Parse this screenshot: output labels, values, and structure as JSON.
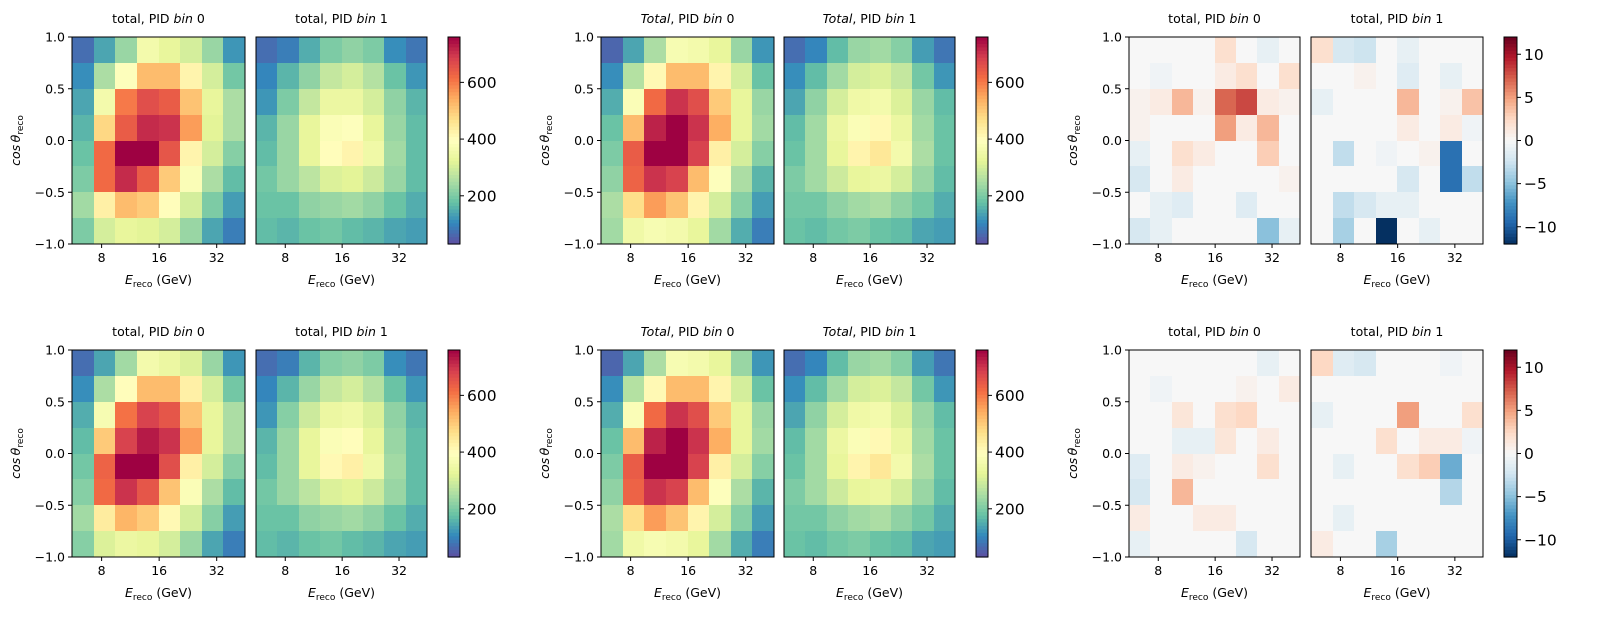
{
  "figure": {
    "rows": 2,
    "panel_titles": [
      [
        "total,  PID ",
        "bin",
        " 0"
      ],
      [
        "total,  PID ",
        "bin",
        " 1"
      ],
      [
        "Total",
        ",  PID ",
        "bin",
        " 0"
      ],
      [
        "Total",
        ",  PID ",
        "bin",
        " 1"
      ]
    ],
    "xlabel_prefix": "E",
    "xlabel_sub": "reco",
    "xlabel_suffix": " (GeV)",
    "ylabel_prefix": "cos θ",
    "ylabel_sub": "reco",
    "x_ticks": [
      "8",
      "16",
      "32"
    ],
    "y_ticks": [
      "1.0",
      "0.5",
      "0.0",
      "−0.5",
      "−1.0"
    ],
    "cbar_counts_ticks": [
      "600",
      "400",
      "200"
    ],
    "cbar_diff_ticks": [
      "10",
      "5",
      "0",
      "−5",
      "−10"
    ]
  },
  "chart_data": {
    "type": "heatmap",
    "x_scale": "log",
    "x_range": [
      5.6,
      45
    ],
    "y_range": [
      -1.0,
      1.0
    ],
    "grid": "8x8 bins",
    "counts_colormap": "Spectral_r",
    "counts_range": [
      30,
      760
    ],
    "diff_colormap": "RdBu_r",
    "diff_range": [
      -12,
      12
    ],
    "panels": [
      {
        "group": "model",
        "row": 0,
        "pid_bin": 0,
        "z": [
          [
            70,
            140,
            230,
            360,
            330,
            300,
            230,
            120
          ],
          [
            110,
            250,
            390,
            520,
            520,
            420,
            300,
            190
          ],
          [
            140,
            360,
            600,
            660,
            640,
            510,
            330,
            250
          ],
          [
            160,
            480,
            640,
            710,
            700,
            560,
            320,
            250
          ],
          [
            180,
            620,
            760,
            760,
            650,
            420,
            300,
            210
          ],
          [
            200,
            620,
            710,
            640,
            500,
            380,
            250,
            170
          ],
          [
            240,
            430,
            520,
            500,
            400,
            300,
            200,
            130
          ],
          [
            200,
            300,
            330,
            320,
            300,
            230,
            140,
            90
          ]
        ]
      },
      {
        "group": "model",
        "row": 0,
        "pid_bin": 1,
        "z": [
          [
            70,
            90,
            150,
            200,
            220,
            200,
            110,
            80
          ],
          [
            100,
            160,
            220,
            280,
            300,
            260,
            180,
            120
          ],
          [
            120,
            200,
            280,
            340,
            340,
            300,
            220,
            160
          ],
          [
            160,
            230,
            330,
            380,
            390,
            330,
            230,
            170
          ],
          [
            170,
            230,
            330,
            400,
            420,
            350,
            240,
            170
          ],
          [
            190,
            230,
            270,
            310,
            320,
            290,
            230,
            170
          ],
          [
            180,
            180,
            220,
            230,
            240,
            220,
            180,
            150
          ],
          [
            170,
            160,
            180,
            190,
            170,
            160,
            140,
            130
          ]
        ]
      },
      {
        "group": "data",
        "row": 0,
        "pid_bin": 0,
        "z": [
          [
            60,
            140,
            250,
            370,
            360,
            330,
            230,
            120
          ],
          [
            110,
            260,
            410,
            520,
            520,
            420,
            300,
            180
          ],
          [
            150,
            380,
            620,
            700,
            660,
            500,
            330,
            230
          ],
          [
            180,
            520,
            720,
            760,
            700,
            540,
            330,
            240
          ],
          [
            200,
            640,
            760,
            760,
            680,
            430,
            300,
            210
          ],
          [
            220,
            630,
            700,
            680,
            520,
            390,
            250,
            160
          ],
          [
            250,
            470,
            560,
            510,
            420,
            300,
            210,
            130
          ],
          [
            240,
            350,
            370,
            360,
            330,
            240,
            150,
            90
          ]
        ]
      },
      {
        "group": "data",
        "row": 0,
        "pid_bin": 1,
        "z": [
          [
            70,
            100,
            170,
            230,
            240,
            210,
            130,
            80
          ],
          [
            110,
            170,
            240,
            300,
            310,
            280,
            190,
            120
          ],
          [
            140,
            220,
            300,
            350,
            360,
            310,
            230,
            170
          ],
          [
            170,
            240,
            340,
            380,
            410,
            340,
            240,
            180
          ],
          [
            180,
            240,
            330,
            420,
            450,
            360,
            250,
            180
          ],
          [
            200,
            240,
            290,
            330,
            340,
            300,
            230,
            170
          ],
          [
            190,
            190,
            220,
            240,
            250,
            220,
            190,
            150
          ],
          [
            180,
            170,
            190,
            200,
            180,
            170,
            140,
            130
          ]
        ]
      },
      {
        "group": "diff",
        "row": 0,
        "pid_bin": 0,
        "z": [
          [
            0,
            0,
            0,
            0,
            2,
            0,
            -1,
            0
          ],
          [
            0,
            -0.5,
            0,
            0,
            1,
            2,
            0,
            2
          ],
          [
            0.5,
            1,
            4,
            0.5,
            7,
            8,
            1,
            0.5
          ],
          [
            0.5,
            0,
            0,
            0,
            5,
            1,
            4,
            0
          ],
          [
            -1,
            0,
            2,
            1,
            0,
            0,
            3,
            0
          ],
          [
            -2,
            0,
            1,
            0,
            0,
            0,
            0,
            0.5
          ],
          [
            0,
            -1,
            -1.5,
            0,
            0,
            -1.5,
            0,
            0
          ],
          [
            -2,
            -1,
            0,
            0,
            0,
            0,
            -5,
            -1
          ]
        ]
      },
      {
        "group": "diff",
        "row": 0,
        "pid_bin": 1,
        "z": [
          [
            2,
            -2,
            -2.5,
            0,
            -1,
            0,
            0,
            0
          ],
          [
            0,
            0,
            0.5,
            0,
            -1.5,
            0,
            -1,
            0
          ],
          [
            -1,
            0,
            0,
            0,
            4,
            0,
            0.5,
            3.5
          ],
          [
            0,
            0,
            0,
            0,
            1,
            0,
            1,
            -0.5
          ],
          [
            0,
            -3,
            0,
            -0.5,
            0,
            0.5,
            -9,
            0
          ],
          [
            0,
            0,
            0,
            0,
            -2,
            0,
            -9,
            -3
          ],
          [
            0,
            -3,
            -2,
            -1,
            -1,
            0,
            0,
            0
          ],
          [
            0,
            -4,
            0,
            -12,
            0,
            -1,
            0,
            0
          ]
        ]
      },
      {
        "group": "model",
        "row": 1,
        "pid_bin": 0,
        "z": [
          [
            70,
            140,
            240,
            360,
            340,
            310,
            230,
            120
          ],
          [
            110,
            250,
            400,
            520,
            520,
            430,
            300,
            190
          ],
          [
            150,
            370,
            610,
            680,
            650,
            510,
            330,
            250
          ],
          [
            170,
            500,
            680,
            730,
            700,
            560,
            330,
            250
          ],
          [
            190,
            630,
            760,
            760,
            660,
            430,
            300,
            210
          ],
          [
            210,
            620,
            700,
            650,
            510,
            380,
            250,
            170
          ],
          [
            240,
            440,
            530,
            500,
            410,
            300,
            210,
            130
          ],
          [
            210,
            310,
            340,
            330,
            300,
            230,
            140,
            90
          ]
        ]
      },
      {
        "group": "model",
        "row": 1,
        "pid_bin": 1,
        "z": [
          [
            70,
            90,
            160,
            210,
            220,
            200,
            110,
            80
          ],
          [
            100,
            160,
            230,
            280,
            300,
            260,
            180,
            120
          ],
          [
            120,
            210,
            290,
            340,
            350,
            310,
            220,
            160
          ],
          [
            160,
            230,
            330,
            380,
            400,
            330,
            230,
            170
          ],
          [
            170,
            230,
            330,
            410,
            430,
            350,
            240,
            170
          ],
          [
            190,
            230,
            270,
            310,
            320,
            290,
            230,
            170
          ],
          [
            180,
            180,
            220,
            230,
            240,
            220,
            180,
            150
          ],
          [
            170,
            160,
            180,
            190,
            170,
            160,
            140,
            130
          ]
        ]
      },
      {
        "group": "data",
        "row": 1,
        "pid_bin": 0,
        "z": [
          [
            60,
            140,
            250,
            370,
            360,
            330,
            230,
            120
          ],
          [
            110,
            260,
            410,
            520,
            520,
            420,
            300,
            180
          ],
          [
            150,
            380,
            620,
            700,
            660,
            500,
            330,
            230
          ],
          [
            180,
            520,
            720,
            760,
            700,
            540,
            330,
            240
          ],
          [
            200,
            640,
            760,
            760,
            680,
            430,
            300,
            210
          ],
          [
            220,
            630,
            700,
            680,
            520,
            390,
            250,
            160
          ],
          [
            250,
            470,
            560,
            510,
            420,
            300,
            210,
            130
          ],
          [
            240,
            350,
            370,
            360,
            330,
            240,
            150,
            90
          ]
        ]
      },
      {
        "group": "data",
        "row": 1,
        "pid_bin": 1,
        "z": [
          [
            70,
            100,
            170,
            230,
            240,
            210,
            130,
            80
          ],
          [
            110,
            170,
            240,
            300,
            310,
            280,
            190,
            120
          ],
          [
            140,
            220,
            300,
            350,
            360,
            310,
            230,
            170
          ],
          [
            170,
            240,
            340,
            380,
            410,
            340,
            240,
            180
          ],
          [
            180,
            240,
            330,
            420,
            450,
            360,
            250,
            180
          ],
          [
            200,
            240,
            290,
            330,
            340,
            300,
            230,
            170
          ],
          [
            190,
            190,
            220,
            240,
            250,
            220,
            190,
            150
          ],
          [
            180,
            170,
            190,
            200,
            180,
            170,
            140,
            130
          ]
        ]
      },
      {
        "group": "diff",
        "row": 1,
        "pid_bin": 0,
        "z": [
          [
            0,
            0,
            0,
            0,
            0,
            0,
            -1,
            0
          ],
          [
            0,
            -0.5,
            0,
            0,
            0,
            0.5,
            0,
            1
          ],
          [
            0,
            0,
            1.5,
            0,
            2,
            2.5,
            0,
            0
          ],
          [
            0,
            0,
            -1,
            -1,
            1.5,
            0,
            1,
            0
          ],
          [
            -1.5,
            0,
            1,
            0.5,
            0,
            0,
            2,
            0
          ],
          [
            -2,
            0,
            4,
            0,
            0,
            0,
            0,
            0
          ],
          [
            1,
            0,
            0,
            1,
            1,
            0,
            0,
            0
          ],
          [
            -1,
            0,
            0,
            0,
            0,
            -2,
            0,
            0
          ]
        ]
      },
      {
        "group": "diff",
        "row": 1,
        "pid_bin": 1,
        "z": [
          [
            2.5,
            -1.5,
            -2,
            0,
            0,
            0,
            -0.5,
            0
          ],
          [
            0,
            0,
            0,
            0,
            0,
            0,
            0,
            0
          ],
          [
            -1,
            0,
            0,
            0,
            5,
            0,
            0,
            2
          ],
          [
            0,
            0,
            0,
            2,
            0,
            1,
            1,
            -0.5
          ],
          [
            0,
            -1,
            0,
            0,
            2,
            3,
            -6,
            0
          ],
          [
            0,
            0,
            0,
            0,
            0,
            0,
            -3.5,
            0
          ],
          [
            0,
            -1,
            0,
            0,
            0,
            0,
            0,
            0
          ],
          [
            1,
            0,
            0,
            -4,
            0,
            0,
            0,
            0
          ]
        ]
      }
    ]
  }
}
